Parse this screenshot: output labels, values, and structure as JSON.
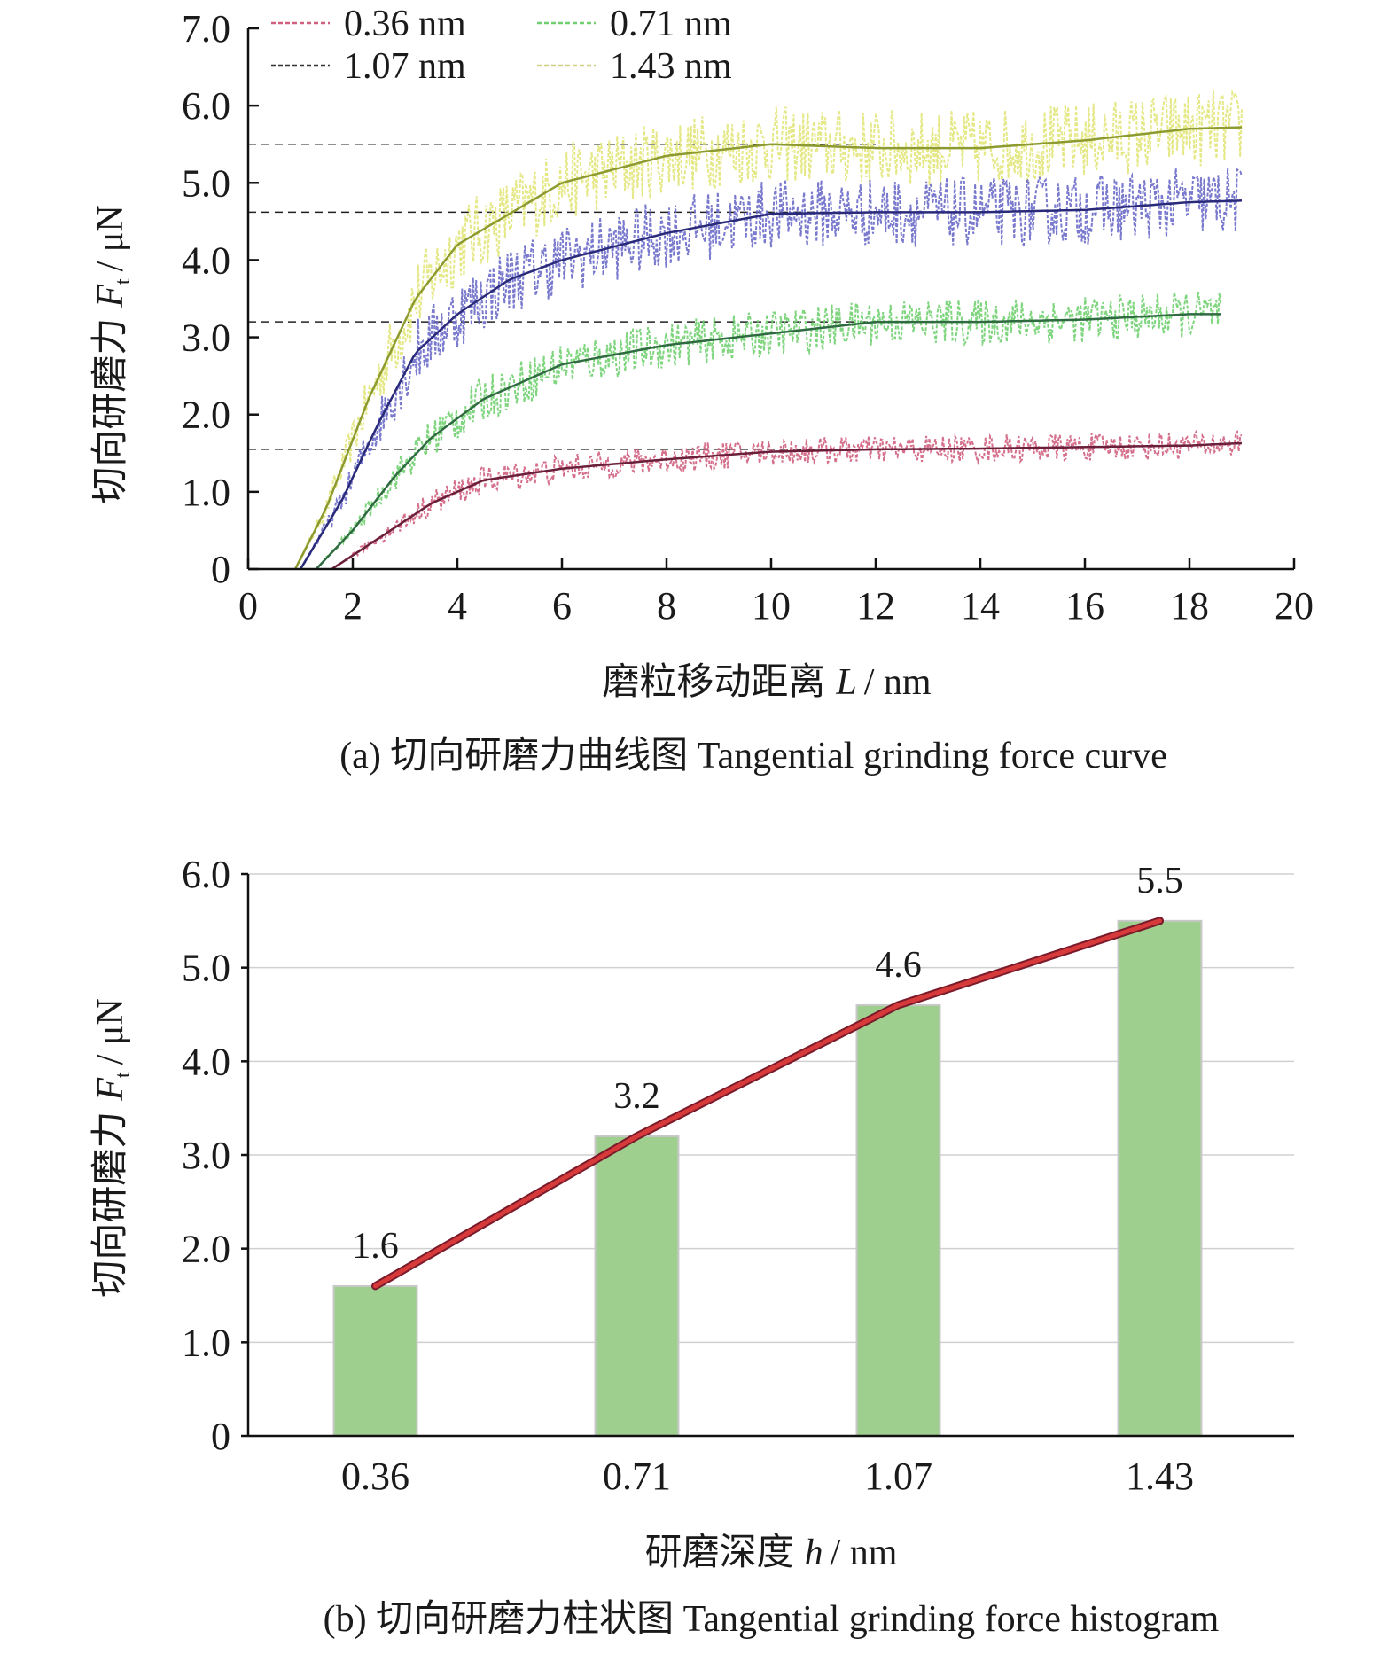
{
  "chart_data": [
    {
      "id": "a",
      "type": "line",
      "xlabel": {
        "main": "磨粒移动距离",
        "var": "L",
        "unit": "/ nm"
      },
      "ylabel": {
        "main": "切向研磨力",
        "var": "F",
        "sub": "t",
        "unit": "/ μN"
      },
      "xlim": [
        0,
        20
      ],
      "ylim": [
        0,
        7
      ],
      "x_ticks": [
        "0",
        "2",
        "4",
        "6",
        "8",
        "10",
        "12",
        "14",
        "16",
        "18",
        "20"
      ],
      "y_ticks": [
        "0",
        "1.0",
        "2.0",
        "3.0",
        "4.0",
        "5.0",
        "6.0",
        "7.0"
      ],
      "caption": "(a) 切向研磨力曲线图 Tangential grinding force curve",
      "legend_position": "top-left",
      "series": [
        {
          "name": "0.36 nm",
          "raw_color": "#d06080",
          "fit_color": "#6a1f3a",
          "fit": [
            [
              1.6,
              0
            ],
            [
              2.5,
              0.4
            ],
            [
              3.5,
              0.85
            ],
            [
              4.5,
              1.15
            ],
            [
              6,
              1.3
            ],
            [
              8,
              1.42
            ],
            [
              10,
              1.52
            ],
            [
              12,
              1.55
            ],
            [
              14,
              1.56
            ],
            [
              16,
              1.58
            ],
            [
              18,
              1.6
            ],
            [
              19,
              1.63
            ]
          ],
          "raw_noise": 0.18,
          "reference": 1.55
        },
        {
          "name": "0.71 nm",
          "raw_color": "#70d070",
          "fit_color": "#2f6a40",
          "fit": [
            [
              1.3,
              0
            ],
            [
              2,
              0.5
            ],
            [
              2.8,
              1.2
            ],
            [
              3.5,
              1.7
            ],
            [
              4.5,
              2.2
            ],
            [
              6,
              2.65
            ],
            [
              8,
              2.9
            ],
            [
              10,
              3.05
            ],
            [
              12,
              3.2
            ],
            [
              14,
              3.2
            ],
            [
              16,
              3.23
            ],
            [
              18,
              3.3
            ],
            [
              18.6,
              3.3
            ]
          ],
          "raw_noise": 0.3,
          "reference": 3.2
        },
        {
          "name": "1.07 nm",
          "raw_color": "#6a6ac8",
          "fit_color": "#2a2a7a",
          "fit": [
            [
              1.0,
              0
            ],
            [
              1.8,
              0.9
            ],
            [
              2.5,
              1.9
            ],
            [
              3.2,
              2.8
            ],
            [
              4,
              3.3
            ],
            [
              5,
              3.75
            ],
            [
              6,
              4.0
            ],
            [
              8,
              4.35
            ],
            [
              10,
              4.6
            ],
            [
              12,
              4.62
            ],
            [
              14,
              4.62
            ],
            [
              16,
              4.65
            ],
            [
              18,
              4.75
            ],
            [
              19,
              4.77
            ]
          ],
          "raw_noise": 0.45,
          "reference": 4.62
        },
        {
          "name": "1.43 nm",
          "raw_color": "#e2e67a",
          "fit_color": "#8c9a30",
          "fit": [
            [
              0.9,
              0
            ],
            [
              1.5,
              0.8
            ],
            [
              2.3,
              2.2
            ],
            [
              3.2,
              3.5
            ],
            [
              4,
              4.2
            ],
            [
              5,
              4.6
            ],
            [
              6,
              5.0
            ],
            [
              8,
              5.35
            ],
            [
              10,
              5.5
            ],
            [
              12,
              5.45
            ],
            [
              14,
              5.45
            ],
            [
              16,
              5.55
            ],
            [
              18,
              5.7
            ],
            [
              19,
              5.72
            ]
          ],
          "raw_noise": 0.5,
          "reference": 5.5
        }
      ]
    },
    {
      "id": "b",
      "type": "bar",
      "categories": [
        "0.36",
        "0.71",
        "1.07",
        "1.43"
      ],
      "values": [
        1.6,
        3.2,
        4.6,
        5.5
      ],
      "data_labels": [
        "1.6",
        "3.2",
        "4.6",
        "5.5"
      ],
      "xlabel": {
        "main": "研磨深度",
        "var": "h",
        "unit": "/ nm"
      },
      "ylabel": {
        "main": "切向研磨力",
        "var": "F",
        "sub": "t",
        "unit": "/ μN"
      },
      "ylim": [
        0,
        6
      ],
      "y_ticks": [
        "0",
        "1.0",
        "2.0",
        "3.0",
        "4.0",
        "5.0",
        "6.0"
      ],
      "grid": true,
      "bar_color": "#9fcf8e",
      "bar_edge_color": "#c8c8c8",
      "trend_color": "#d63a3a",
      "caption": "(b) 切向研磨力柱状图 Tangential grinding force histogram"
    }
  ]
}
